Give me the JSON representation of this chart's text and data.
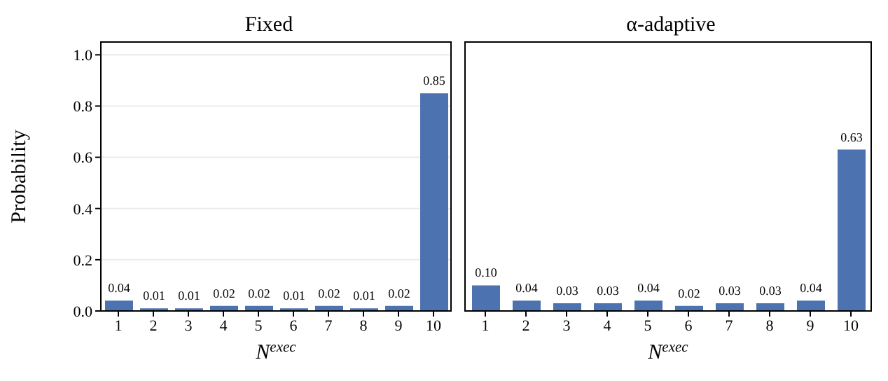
{
  "chart_data": [
    {
      "type": "bar",
      "title": "Fixed",
      "xlabel": "N$^{exec}$",
      "ylabel": "Probability",
      "color": "#4c72b0",
      "categories": [
        "1",
        "2",
        "3",
        "4",
        "5",
        "6",
        "7",
        "8",
        "9",
        "10"
      ],
      "values": [
        0.04,
        0.01,
        0.01,
        0.02,
        0.02,
        0.01,
        0.02,
        0.01,
        0.02,
        0.85
      ],
      "value_labels": [
        "0.04",
        "0.01",
        "0.01",
        "0.02",
        "0.02",
        "0.01",
        "0.02",
        "0.01",
        "0.02",
        "0.85"
      ],
      "ylim": [
        0,
        1.05
      ],
      "yticks": [
        {
          "value": 0,
          "label": "0.0"
        },
        {
          "value": 0.2,
          "label": "0.2"
        },
        {
          "value": 0.4,
          "label": "0.4"
        },
        {
          "value": 0.6,
          "label": "0.6"
        },
        {
          "value": 0.8,
          "label": "0.8"
        },
        {
          "value": 1,
          "label": "1.0"
        }
      ],
      "grid": "y"
    },
    {
      "type": "bar",
      "title": "α-adaptive",
      "xlabel": "N$^{exec}$",
      "color": "#4c72b0",
      "categories": [
        "1",
        "2",
        "3",
        "4",
        "5",
        "6",
        "7",
        "8",
        "9",
        "10"
      ],
      "values": [
        0.1,
        0.04,
        0.03,
        0.03,
        0.04,
        0.02,
        0.03,
        0.03,
        0.04,
        0.63
      ],
      "value_labels": [
        "0.10",
        "0.04",
        "0.03",
        "0.03",
        "0.04",
        "0.02",
        "0.03",
        "0.03",
        "0.04",
        "0.63"
      ],
      "ylim": [
        0,
        1.05
      ],
      "yticks": [
        {
          "value": 0,
          "label": null
        },
        {
          "value": 0.2,
          "label": null
        },
        {
          "value": 0.4,
          "label": null
        },
        {
          "value": 0.6,
          "label": null
        },
        {
          "value": 0.8,
          "label": null
        },
        {
          "value": 1,
          "label": null
        }
      ],
      "grid": "y",
      "tick_labels": "x"
    }
  ]
}
